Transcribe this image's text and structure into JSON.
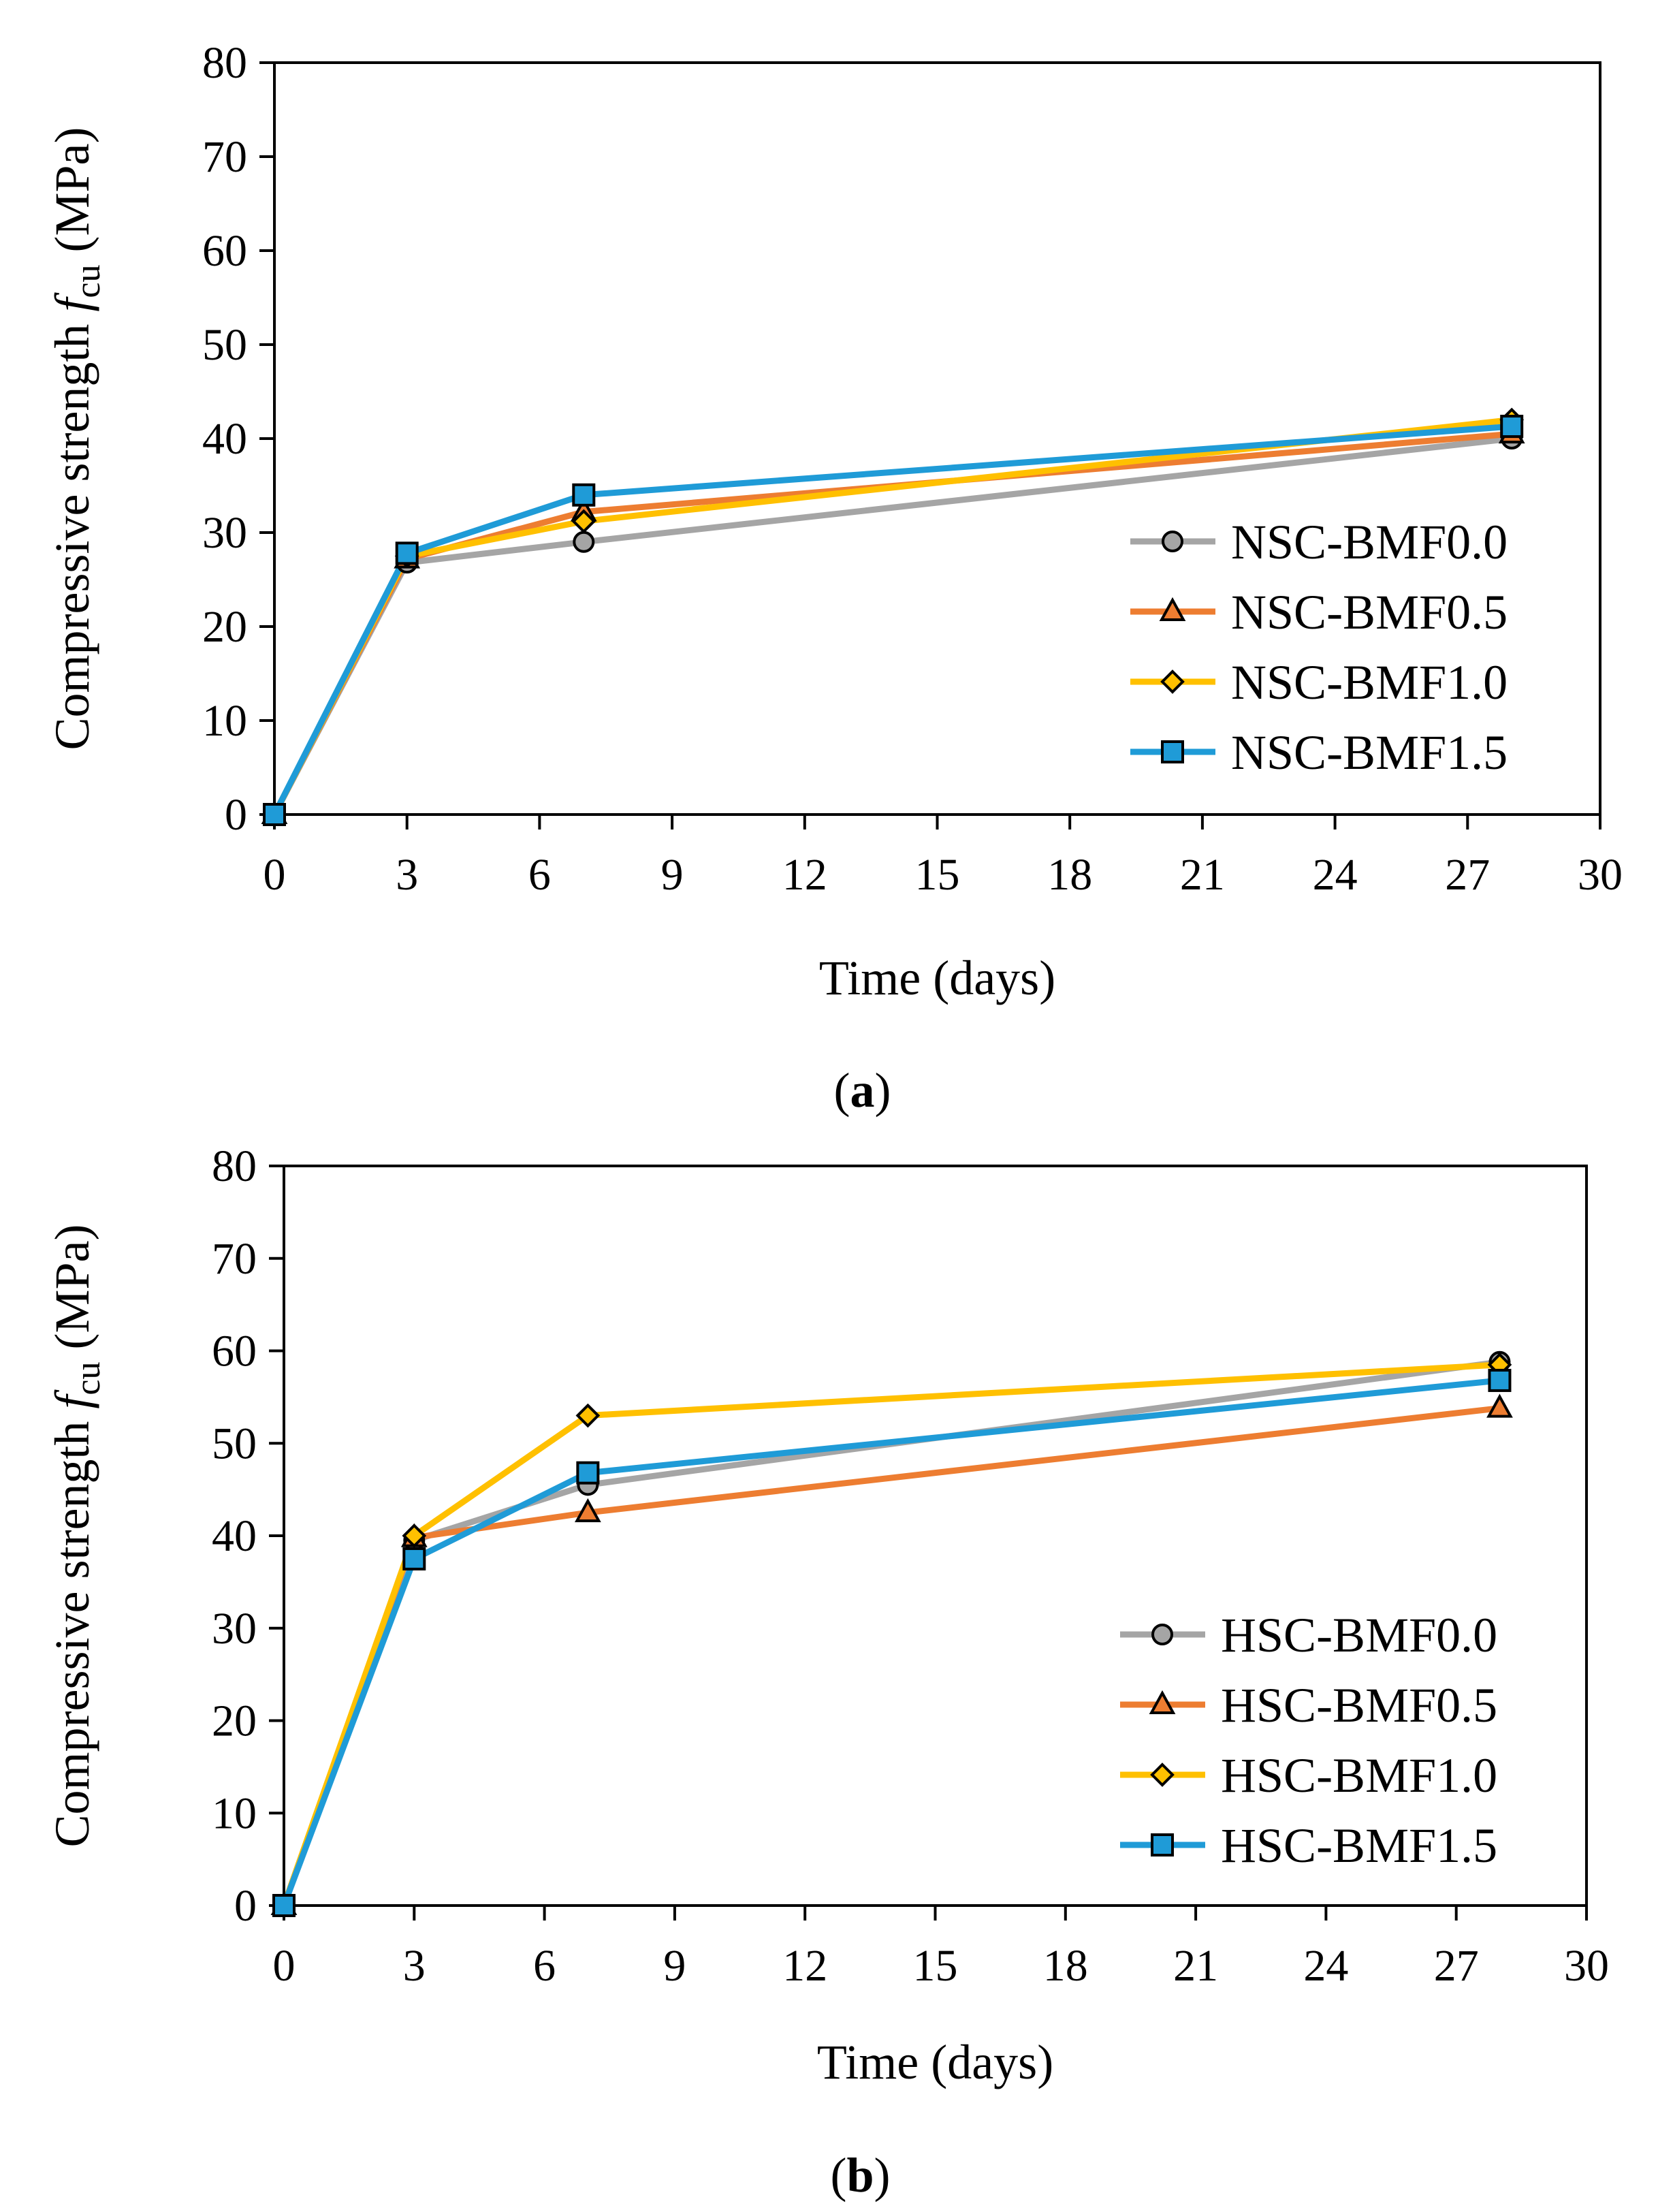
{
  "chart_data": [
    {
      "type": "line",
      "panel": "a",
      "caption_letter": "a",
      "xlabel": "Time (days)",
      "ylabel_main": "Compressive strength ",
      "ylabel_f": "f",
      "ylabel_sub": "cu",
      "ylabel_unit": " (MPa)",
      "xlim": [
        0,
        30
      ],
      "ylim": [
        0,
        80
      ],
      "xticks": [
        0,
        3,
        6,
        9,
        12,
        15,
        18,
        21,
        24,
        27,
        30
      ],
      "yticks": [
        0,
        10,
        20,
        30,
        40,
        50,
        60,
        70,
        80
      ],
      "grid": false,
      "legend_position": "bottom-right",
      "x": [
        0,
        3,
        7,
        28
      ],
      "series": [
        {
          "name": "NSC-BMF0.0",
          "color": "#A5A5A5",
          "marker": "circle",
          "values": [
            0,
            26.8,
            29.0,
            40.0
          ]
        },
        {
          "name": "NSC-BMF0.5",
          "color": "#ED7D31",
          "marker": "triangle",
          "values": [
            0,
            27.2,
            32.2,
            40.5
          ]
        },
        {
          "name": "NSC-BMF1.0",
          "color": "#FFC000",
          "marker": "diamond",
          "values": [
            0,
            27.5,
            31.2,
            42.0
          ]
        },
        {
          "name": "NSC-BMF1.5",
          "color": "#1F9BD7",
          "marker": "square",
          "values": [
            0,
            27.8,
            34.0,
            41.3
          ]
        }
      ]
    },
    {
      "type": "line",
      "panel": "b",
      "caption_letter": "b",
      "xlabel": "Time (days)",
      "ylabel_main": "Compressive strength ",
      "ylabel_f": "f",
      "ylabel_sub": "cu",
      "ylabel_unit": " (MPa)",
      "xlim": [
        0,
        30
      ],
      "ylim": [
        0,
        80
      ],
      "xticks": [
        0,
        3,
        6,
        9,
        12,
        15,
        18,
        21,
        24,
        27,
        30
      ],
      "yticks": [
        0,
        10,
        20,
        30,
        40,
        50,
        60,
        70,
        80
      ],
      "grid": false,
      "legend_position": "bottom-right",
      "x": [
        0,
        3,
        7,
        28
      ],
      "series": [
        {
          "name": "HSC-BMF0.0",
          "color": "#A5A5A5",
          "marker": "circle",
          "values": [
            0,
            39.5,
            45.5,
            58.8
          ]
        },
        {
          "name": "HSC-BMF0.5",
          "color": "#ED7D31",
          "marker": "triangle",
          "values": [
            0,
            39.8,
            42.5,
            53.8
          ]
        },
        {
          "name": "HSC-BMF1.0",
          "color": "#FFC000",
          "marker": "diamond",
          "values": [
            0,
            40.0,
            53.0,
            58.5
          ]
        },
        {
          "name": "HSC-BMF1.5",
          "color": "#1F9BD7",
          "marker": "square",
          "values": [
            0,
            37.5,
            46.8,
            56.8
          ]
        }
      ]
    }
  ]
}
